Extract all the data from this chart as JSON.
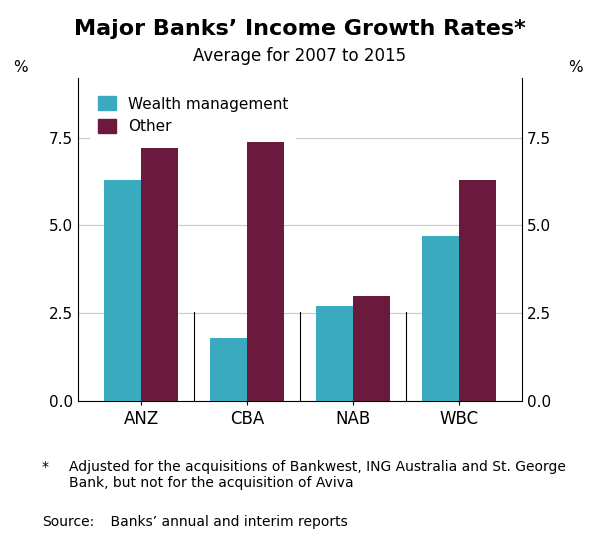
{
  "title": "Major Banks’ Income Growth Rates*",
  "subtitle": "Average for 2007 to 2015",
  "categories": [
    "ANZ",
    "CBA",
    "NAB",
    "WBC"
  ],
  "wealth_management": [
    6.3,
    1.8,
    2.7,
    4.7
  ],
  "other": [
    7.2,
    7.8,
    3.0,
    6.3
  ],
  "wealth_color": "#3AABBF",
  "other_color": "#6B1A3E",
  "ylabel_left": "%",
  "ylabel_right": "%",
  "ylim": [
    0,
    9.2
  ],
  "yticks": [
    0.0,
    2.5,
    5.0,
    7.5
  ],
  "bar_width": 0.35,
  "footnote_star": "Adjusted for the acquisitions of Bankwest, ING Australia and St. George\nBank, but not for the acquisition of Aviva",
  "source_label": "Source:",
  "source_text": "    Banks’ annual and interim reports",
  "title_fontsize": 16,
  "subtitle_fontsize": 12,
  "tick_fontsize": 11,
  "legend_fontsize": 11,
  "footnote_fontsize": 10,
  "background_color": "#ffffff",
  "grid_color": "#c8c8c8"
}
